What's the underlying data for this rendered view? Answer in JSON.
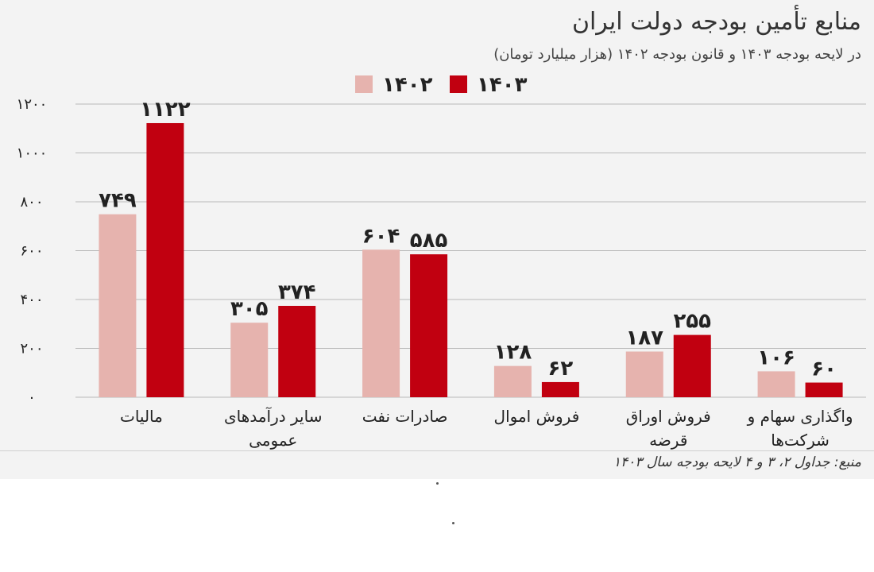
{
  "header": {
    "title": "منابع تأمین بودجه دولت ایران",
    "subtitle": "در لایحه بودجه ۱۴۰۳ و قانون بودجه ۱۴۰۲ (هزار میلیارد تومان)"
  },
  "footer": {
    "source": "منبع: جداول ۲، ۳ و ۴ لایحه بودجه سال ۱۴۰۳"
  },
  "colors": {
    "s1402": "#e6b3ae",
    "s1403": "#c10010",
    "grid": "#b9b9b9"
  },
  "chart_data": {
    "type": "bar",
    "categories": [
      "مالیات",
      "سایر درآمدهای\nعمومی",
      "صادرات نفت",
      "فروش اموال",
      "فروش اوراق\nقرضه",
      "واگذاری سهام و\nشرکت‌ها"
    ],
    "series": [
      {
        "name": "۱۴۰۲",
        "values": [
          749,
          305,
          604,
          128,
          187,
          106
        ],
        "labels": [
          "۷۴۹",
          "۳۰۵",
          "۶۰۴",
          "۱۲۸",
          "۱۸۷",
          "۱۰۶"
        ]
      },
      {
        "name": "۱۴۰۳",
        "values": [
          1122,
          374,
          585,
          62,
          255,
          60
        ],
        "labels": [
          "۱۱۲۲",
          "۳۷۴",
          "۵۸۵",
          "۶۲",
          "۲۵۵",
          "۶۰"
        ]
      }
    ],
    "ylim": [
      0,
      1200
    ],
    "yticks": [
      0,
      200,
      400,
      600,
      800,
      1000,
      1200
    ],
    "ytick_labels": [
      "۰",
      "۲۰۰",
      "۴۰۰",
      "۶۰۰",
      "۸۰۰",
      "۱۰۰۰",
      "۱۲۰۰"
    ],
    "grid": true,
    "legend_position": "top"
  }
}
